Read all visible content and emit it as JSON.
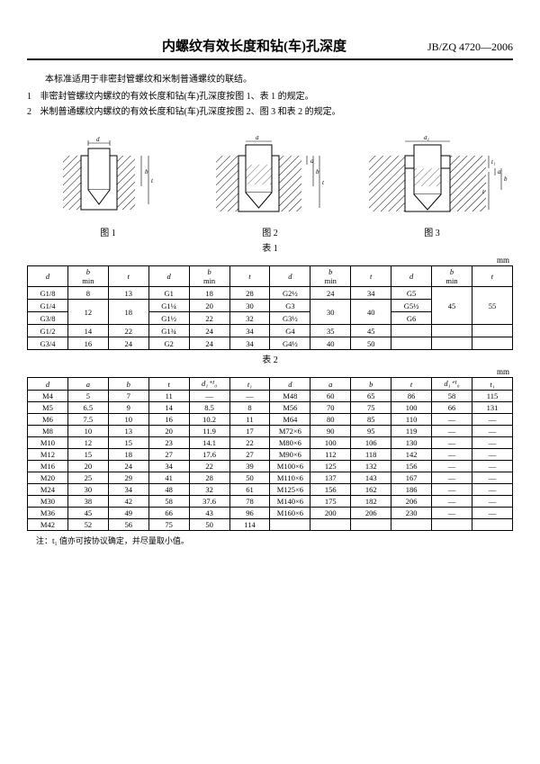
{
  "header": {
    "title": "内螺纹有效长度和钻(车)孔深度",
    "docno": "JB/ZQ 4720—2006"
  },
  "intro": "本标准适用于非密封管螺纹和米制普通螺纹的联结。",
  "item1": {
    "n": "1",
    "text": "非密封管螺纹内螺纹的有效长度和钻(车)孔深度按图 1、表 1 的规定。"
  },
  "item2": {
    "n": "2",
    "text": "米制普通螺纹内螺纹的有效长度和钻(车)孔深度按图 2、图 3 和表 2 的规定。"
  },
  "figs": {
    "f1": "图 1",
    "f2": "图 2",
    "f3": "图 3"
  },
  "table1": {
    "label": "表 1",
    "unit": "mm",
    "h": {
      "d": "d",
      "bmin": "b\nmin",
      "t": "t"
    },
    "rows": [
      [
        "G1/8",
        "8",
        "13",
        "G1",
        "18",
        "28",
        "G2½",
        "24",
        "34",
        "G5",
        "45",
        "55"
      ],
      [
        "G1/4",
        "12",
        "18",
        "G1¼",
        "20",
        "30",
        "G3",
        "30",
        "40",
        "G5½",
        "45",
        "55"
      ],
      [
        "G3/8",
        "12",
        "18",
        "G1½",
        "22",
        "32",
        "G3½",
        "30",
        "40",
        "G6",
        "45",
        "55"
      ],
      [
        "G1/2",
        "14",
        "22",
        "G1¾",
        "24",
        "34",
        "G4",
        "35",
        "45",
        "",
        "",
        ""
      ],
      [
        "G3/4",
        "16",
        "24",
        "G2",
        "24",
        "34",
        "G4½",
        "40",
        "50",
        "",
        "",
        ""
      ]
    ],
    "merges": {
      "r1c1": {
        "rs": 2
      },
      "r1c2": {
        "rs": 2
      },
      "r1c7": {
        "rs": 2
      },
      "r1c8": {
        "rs": 2
      },
      "r0c10": {
        "rs": 3
      },
      "r0c11": {
        "rs": 3
      }
    }
  },
  "table2": {
    "label": "表 2",
    "unit": "mm",
    "h": [
      "d",
      "a",
      "b",
      "t",
      "d₁⁺¹₀",
      "t₁",
      "d",
      "a",
      "b",
      "t",
      "d₁⁺¹₀",
      "t₁"
    ],
    "rows": [
      [
        "M4",
        "5",
        "7",
        "11",
        "—",
        "—",
        "M48",
        "60",
        "65",
        "86",
        "58",
        "115"
      ],
      [
        "M5",
        "6.5",
        "9",
        "14",
        "8.5",
        "8",
        "M56",
        "70",
        "75",
        "100",
        "66",
        "131"
      ],
      [
        "M6",
        "7.5",
        "10",
        "16",
        "10.2",
        "11",
        "M64",
        "80",
        "85",
        "110",
        "—",
        "—"
      ],
      [
        "M8",
        "10",
        "13",
        "20",
        "11.9",
        "17",
        "M72×6",
        "90",
        "95",
        "119",
        "—",
        "—"
      ],
      [
        "M10",
        "12",
        "15",
        "23",
        "14.1",
        "22",
        "M80×6",
        "100",
        "106",
        "130",
        "—",
        "—"
      ],
      [
        "M12",
        "15",
        "18",
        "27",
        "17.6",
        "27",
        "M90×6",
        "112",
        "118",
        "142",
        "—",
        "—"
      ],
      [
        "M16",
        "20",
        "24",
        "34",
        "22",
        "39",
        "M100×6",
        "125",
        "132",
        "156",
        "—",
        "—"
      ],
      [
        "M20",
        "25",
        "29",
        "41",
        "28",
        "50",
        "M110×6",
        "137",
        "143",
        "167",
        "—",
        "—"
      ],
      [
        "M24",
        "30",
        "34",
        "48",
        "32",
        "61",
        "M125×6",
        "156",
        "162",
        "186",
        "—",
        "—"
      ],
      [
        "M30",
        "38",
        "42",
        "58",
        "37.6",
        "78",
        "M140×6",
        "175",
        "182",
        "206",
        "—",
        "—"
      ],
      [
        "M36",
        "45",
        "49",
        "66",
        "43",
        "96",
        "M160×6",
        "200",
        "206",
        "230",
        "—",
        "—"
      ],
      [
        "M42",
        "52",
        "56",
        "75",
        "50",
        "114",
        "",
        "",
        "",
        "",
        "",
        ""
      ]
    ]
  },
  "note": "注：t₁ 值亦可按协议确定，并尽量取小值。"
}
